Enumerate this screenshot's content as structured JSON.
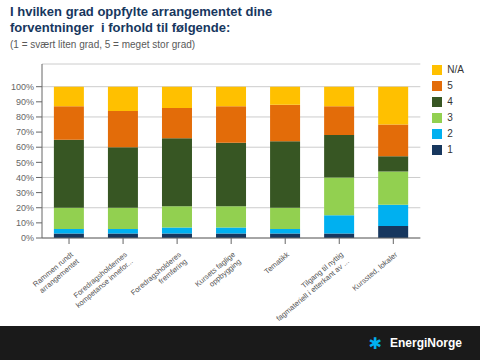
{
  "chart_data": {
    "type": "bar",
    "title": "I hvilken grad oppfylte arrangementet dine\nforventninger  i forhold til følgende:",
    "subtitle": "(1 = svært liten grad, 5 = meget stor grad)",
    "categories": [
      "Rammen rundt\narrangementet",
      "Foredragsholdernes\nkompetanse innefor...",
      "Foredragsholderes\nfremføring",
      "Kursets faglige\noppbygging",
      "Tematikk",
      "Tilgang til nyttig\nfagmateriell i etterkant av ...",
      "Kurssted, lokaler"
    ],
    "series": [
      {
        "name": "1",
        "color": "#17375E",
        "values": [
          3,
          3,
          3,
          3,
          3,
          3,
          8
        ]
      },
      {
        "name": "2",
        "color": "#00B0F0",
        "values": [
          3,
          3,
          4,
          4,
          3,
          12,
          14
        ]
      },
      {
        "name": "3",
        "color": "#92D050",
        "values": [
          14,
          14,
          14,
          14,
          14,
          25,
          22
        ]
      },
      {
        "name": "4",
        "color": "#375623",
        "values": [
          45,
          40,
          45,
          42,
          44,
          28,
          10
        ]
      },
      {
        "name": "5",
        "color": "#E36C09",
        "values": [
          22,
          24,
          20,
          24,
          24,
          19,
          21
        ]
      },
      {
        "name": "N/A",
        "color": "#FFC000",
        "values": [
          13,
          16,
          14,
          13,
          12,
          13,
          25
        ]
      }
    ],
    "stacked": true,
    "ylim": [
      0,
      115
    ],
    "yticks": [
      {
        "value": 0,
        "label": "0%"
      },
      {
        "value": 10,
        "label": "10%"
      },
      {
        "value": 20,
        "label": "20%"
      },
      {
        "value": 30,
        "label": "30%"
      },
      {
        "value": 40,
        "label": "40%"
      },
      {
        "value": 50,
        "label": "50%"
      },
      {
        "value": 60,
        "label": "60%"
      },
      {
        "value": 70,
        "label": "70%"
      },
      {
        "value": 80,
        "label": "80%"
      },
      {
        "value": 90,
        "label": "90%"
      },
      {
        "value": 100,
        "label": "100%"
      }
    ],
    "grid": true,
    "legend": "right",
    "annotations": [
      "✱",
      "EnergiNorge"
    ]
  }
}
